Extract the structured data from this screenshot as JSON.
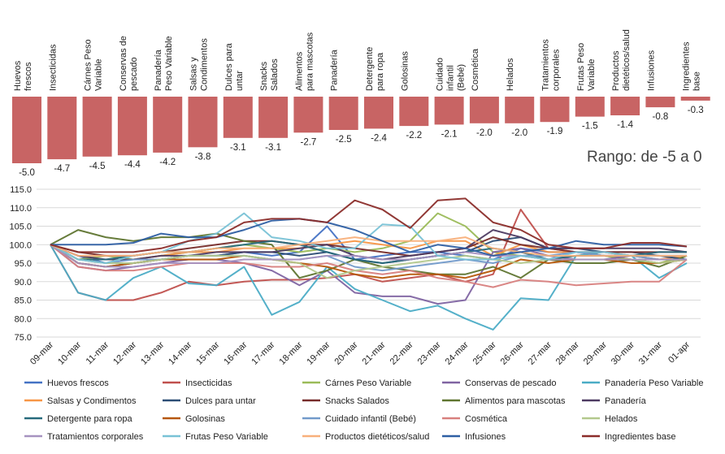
{
  "range_text": "Rango: de -5 a 0",
  "chart_data": [
    {
      "type": "bar",
      "categories": [
        "Huevos frescos",
        "Insecticidas",
        "Cárnes Peso Variable",
        "Conservas de pescado",
        "Panadería Peso Variable",
        "Salsas y Condimentos",
        "Dulces para untar",
        "Snacks Salados",
        "Alimentos para mascotas",
        "Panadería",
        "Detergente para ropa",
        "Golosinas",
        "Cuidado infantil (Bebé)",
        "Cosmética",
        "Helados",
        "Tratamientos corporales",
        "Frutas Peso Variable",
        "Productos dietéticos/salud",
        "Infusiones",
        "Ingredientes base"
      ],
      "values": [
        -5.0,
        -4.7,
        -4.5,
        -4.4,
        -4.2,
        -3.8,
        -3.1,
        -3.1,
        -2.7,
        -2.5,
        -2.4,
        -2.2,
        -2.1,
        -2.0,
        -2.0,
        -1.9,
        -1.5,
        -1.4,
        -0.8,
        -0.3
      ],
      "value_labels": [
        "-5.0",
        "-4.7",
        "-4.5",
        "-4.4",
        "-4.2",
        "-3.8",
        "-3.1",
        "-3.1",
        "-2.7",
        "-2.5",
        "-2.4",
        "-2.2",
        "-2.1",
        "-2.0",
        "-2.0",
        "-1.9",
        "-1.5",
        "-1.4",
        "-0.8",
        "-0.3"
      ],
      "ylim": [
        -5,
        0
      ],
      "color": "#c86464"
    },
    {
      "type": "line",
      "x": [
        "09-mar",
        "10-mar",
        "11-mar",
        "12-mar",
        "13-mar",
        "14-mar",
        "15-mar",
        "16-mar",
        "17-mar",
        "18-mar",
        "19-mar",
        "20-mar",
        "21-mar",
        "22-mar",
        "23-mar",
        "24-mar",
        "25-mar",
        "26-mar",
        "27-mar",
        "28-mar",
        "29-mar",
        "30-mar",
        "31-mar",
        "01-apr"
      ],
      "ylim": [
        75,
        115
      ],
      "yticks": [
        "75.0",
        "80.0",
        "85.0",
        "90.0",
        "95.0",
        "100.0",
        "105.0",
        "110.0",
        "115.0"
      ],
      "grid": true,
      "legend_position": "bottom",
      "series": [
        {
          "name": "Huevos frescos",
          "color": "#4472c4",
          "values": [
            100,
            97,
            95,
            95,
            96,
            97,
            97,
            98,
            97,
            98,
            105,
            96,
            97,
            98,
            98,
            97,
            96,
            99,
            98,
            98,
            97,
            97,
            96,
            96
          ]
        },
        {
          "name": "Insecticidas",
          "color": "#c0504d",
          "values": [
            100,
            87,
            85,
            85,
            87,
            90,
            89,
            90,
            90.5,
            90.5,
            91,
            92,
            90,
            91,
            92,
            90,
            92,
            109.5,
            99,
            98,
            97,
            96,
            95,
            96
          ]
        },
        {
          "name": "Cárnes Peso Variable",
          "color": "#9bbb59",
          "values": [
            100,
            96,
            97,
            96,
            97,
            98,
            99,
            100,
            99,
            98,
            99,
            98,
            99,
            101,
            108.5,
            105,
            98,
            97,
            96,
            97,
            97,
            96,
            95,
            97
          ]
        },
        {
          "name": "Conservas de pescado",
          "color": "#8064a2",
          "values": [
            100,
            94,
            93,
            94,
            95,
            96,
            96,
            95,
            93,
            89,
            93,
            87,
            86,
            86,
            84,
            85,
            98,
            99,
            97,
            96,
            96,
            97,
            97,
            97
          ]
        },
        {
          "name": "Panadería Peso Variable",
          "color": "#4bacc6",
          "values": [
            100,
            87,
            85,
            91,
            94,
            89.5,
            89,
            94,
            81,
            84.5,
            94,
            88,
            85,
            82,
            83.5,
            80,
            77,
            85.5,
            85,
            97,
            98,
            97,
            91,
            95
          ]
        },
        {
          "name": "Salsas y Condimentos",
          "color": "#f79646",
          "values": [
            100,
            96,
            96,
            96,
            97,
            98,
            98,
            99,
            99,
            99,
            100,
            101,
            100,
            99,
            101,
            101,
            97,
            100,
            98,
            98,
            98,
            97,
            96,
            97
          ]
        },
        {
          "name": "Dulces para untar",
          "color": "#2c4d75",
          "values": [
            100,
            95,
            94,
            95,
            96,
            97,
            97,
            98,
            98,
            97,
            98,
            96,
            95,
            96,
            97,
            98,
            101,
            102,
            99,
            99,
            98,
            98,
            97,
            96
          ]
        },
        {
          "name": "Snacks Salados",
          "color": "#772c2a",
          "values": [
            100,
            98,
            97,
            97,
            98,
            99,
            100,
            101,
            101,
            100,
            100,
            99,
            98,
            97,
            98,
            99,
            102,
            100,
            99,
            98,
            98,
            98,
            98,
            98
          ]
        },
        {
          "name": "Alimentos para mascotas",
          "color": "#5f7530",
          "values": [
            100,
            104,
            102,
            101,
            102,
            102,
            103,
            101,
            100,
            91,
            93,
            96,
            94,
            93,
            92,
            92,
            94,
            91,
            96,
            95,
            95,
            96,
            94,
            97
          ]
        },
        {
          "name": "Panadería",
          "color": "#4d3b62",
          "values": [
            100,
            97,
            96,
            96,
            97,
            97,
            98,
            98,
            98,
            99,
            100,
            97,
            96,
            97,
            98,
            99,
            104,
            102,
            99,
            99,
            99,
            99,
            99,
            98
          ]
        },
        {
          "name": "Detergente para ropa",
          "color": "#276a7c",
          "values": [
            100,
            96,
            96,
            97,
            98,
            98,
            99,
            100,
            101,
            100,
            98,
            96,
            95,
            96,
            97,
            98,
            99,
            98,
            96,
            97,
            97,
            97,
            98,
            98
          ]
        },
        {
          "name": "Golosinas",
          "color": "#b65708",
          "values": [
            100,
            95,
            94,
            95,
            96,
            96,
            96,
            97,
            96,
            95,
            94,
            92,
            91,
            92,
            92,
            91,
            93,
            96,
            95,
            96,
            96,
            95,
            95,
            96
          ]
        },
        {
          "name": "Cuidado infantil (Bebé)",
          "color": "#729aca",
          "values": [
            100,
            96,
            95,
            96,
            96,
            97,
            97,
            97,
            96,
            96,
            97,
            94,
            93,
            94,
            95,
            96,
            95,
            97,
            97,
            98,
            97,
            97,
            96,
            96
          ]
        },
        {
          "name": "Cosmética",
          "color": "#d8807e",
          "values": [
            100,
            94,
            93,
            93,
            94,
            95,
            95,
            95,
            94,
            94,
            95,
            93,
            92,
            93,
            91,
            90,
            88.5,
            90.5,
            90,
            89,
            89.5,
            90,
            90,
            96
          ]
        },
        {
          "name": "Helados",
          "color": "#b3c98d",
          "values": [
            100,
            96,
            95,
            95,
            96,
            97,
            97,
            97,
            96,
            95,
            91,
            93,
            94,
            95,
            96,
            97,
            96,
            95,
            96,
            96,
            96,
            96,
            95,
            96
          ]
        },
        {
          "name": "Tratamientos corporales",
          "color": "#a692c0",
          "values": [
            100,
            95,
            94,
            94,
            95,
            95,
            95,
            96,
            96,
            96,
            97,
            97,
            96,
            96,
            97,
            98,
            97,
            97,
            96,
            96,
            96,
            96,
            96,
            96
          ]
        },
        {
          "name": "Frutas Peso Variable",
          "color": "#79c2d6",
          "values": [
            100,
            96,
            95,
            97,
            98,
            101,
            103,
            108.5,
            102,
            101,
            99,
            99,
            105.5,
            105,
            97,
            96,
            96,
            97,
            96,
            98,
            98,
            97,
            97,
            97
          ]
        },
        {
          "name": "Productos dietéticos/salud",
          "color": "#f8b07b",
          "values": [
            100,
            97,
            97,
            97,
            98,
            98,
            99,
            99,
            99,
            100,
            101,
            102,
            101,
            101,
            101,
            102,
            99,
            98,
            97,
            97,
            97,
            97,
            97,
            97
          ]
        },
        {
          "name": "Infusiones",
          "color": "#2e5fa3",
          "values": [
            100,
            100,
            100,
            100.5,
            103,
            102,
            102,
            104,
            106.5,
            107,
            106,
            104,
            101,
            98,
            100,
            99,
            97,
            98,
            99,
            101,
            100,
            100,
            100,
            99.5
          ]
        },
        {
          "name": "Ingredientes base",
          "color": "#8b2d2a",
          "values": [
            100,
            98,
            98,
            98,
            99,
            101,
            102,
            106,
            107,
            107,
            106,
            112,
            109.5,
            104.5,
            112,
            112.5,
            106,
            104,
            100,
            99,
            99,
            100.5,
            100.5,
            99.5
          ]
        }
      ]
    }
  ]
}
